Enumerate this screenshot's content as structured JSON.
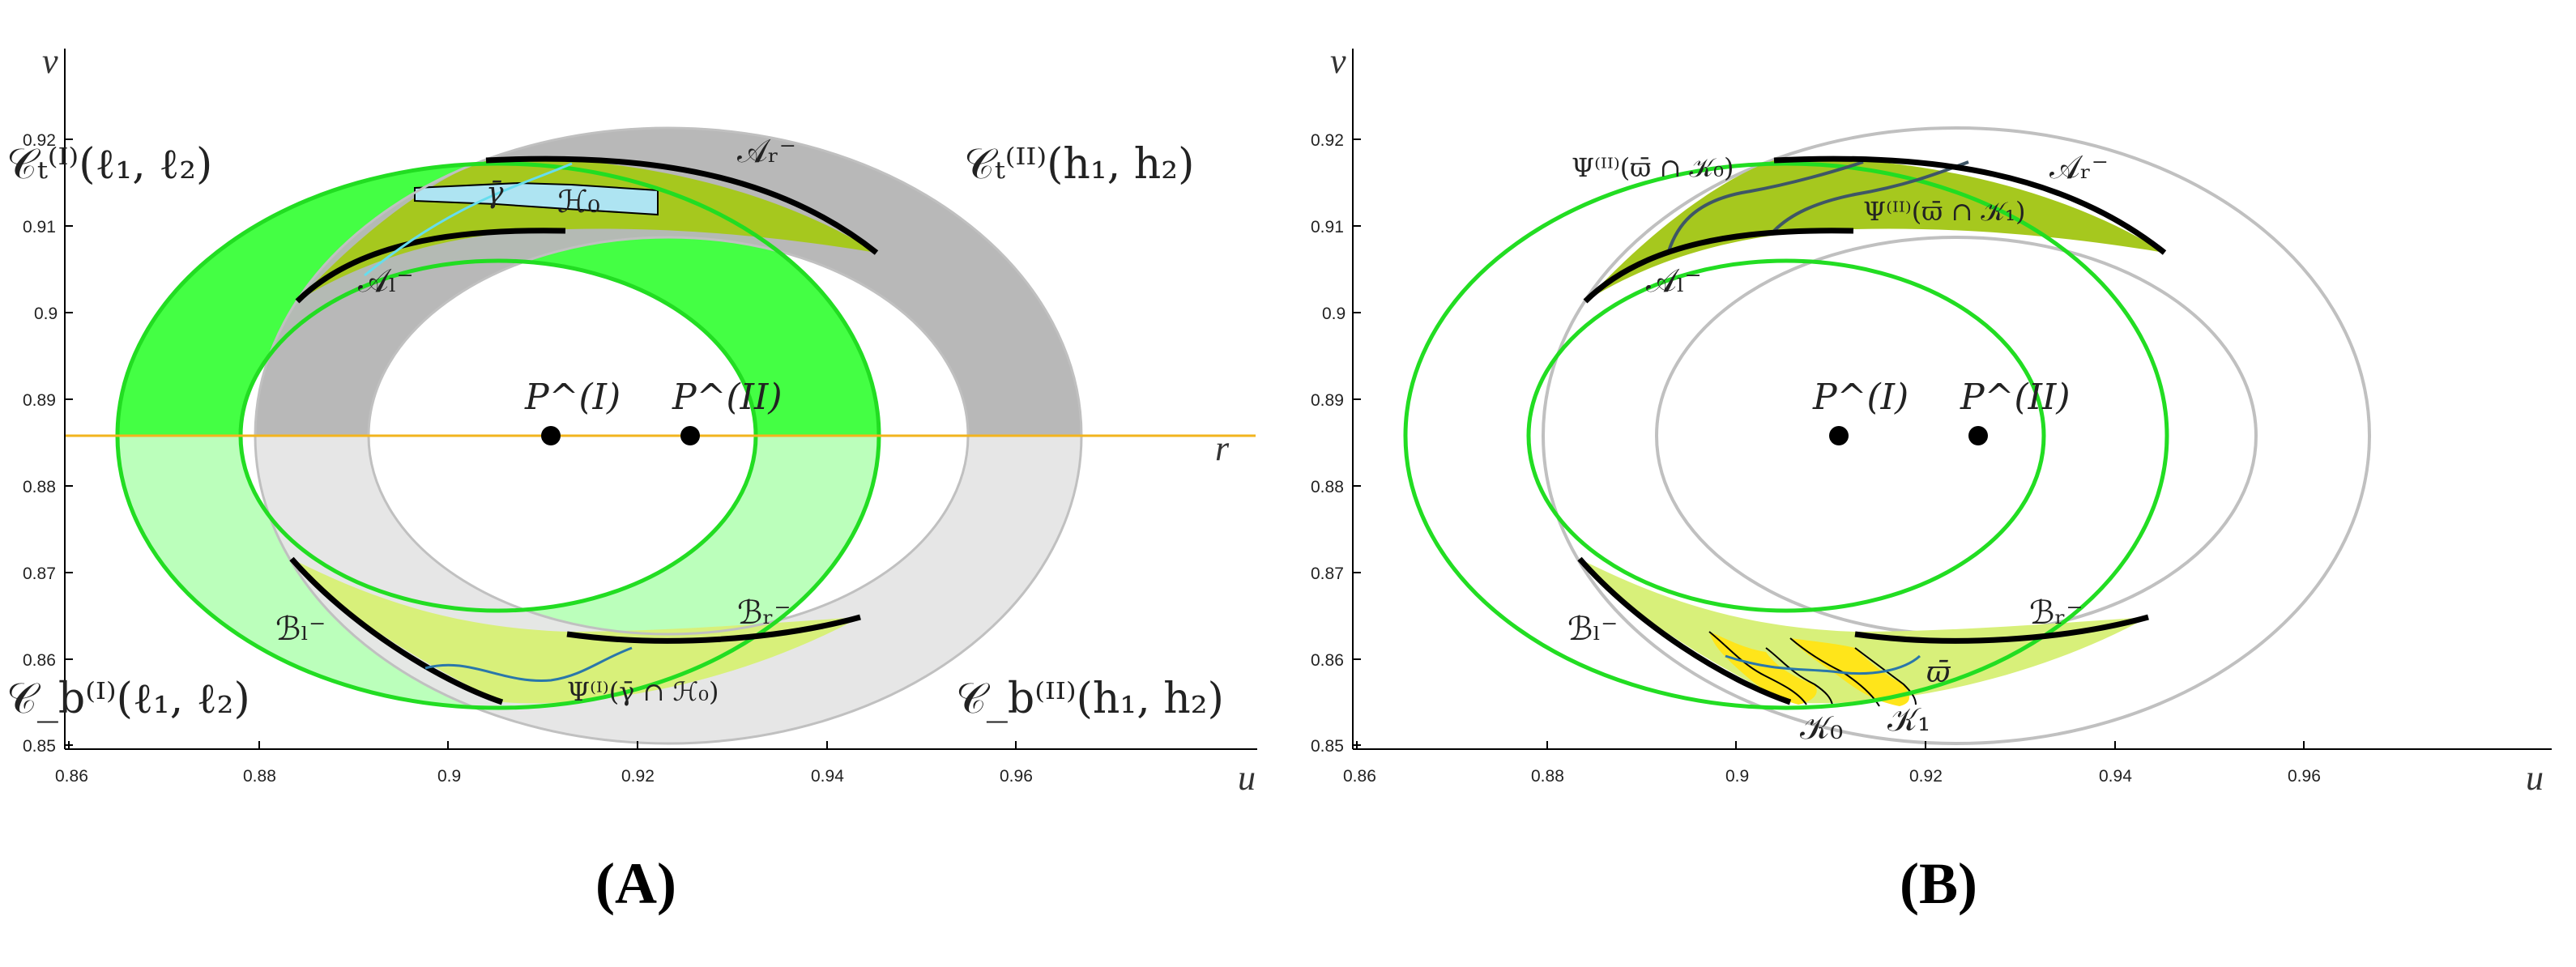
{
  "panels": [
    {
      "id": "A",
      "caption": "(A)",
      "xlabel": "u",
      "ylabel": "v",
      "x_ticks": [
        "0.86",
        "0.88",
        "0.9",
        "0.92",
        "0.94",
        "0.96"
      ],
      "y_ticks": [
        "0.92",
        "0.91",
        "0.9",
        "0.89",
        "0.88",
        "0.87",
        "0.86",
        "0.85"
      ],
      "points": [
        "P^(I)",
        "P^(II)"
      ],
      "line_label": "r",
      "labels": {
        "ct1": "𝒞ₜ⁽ᴵ⁾(ℓ₁, ℓ₂)",
        "cb1": "𝒞_b⁽ᴵ⁾(ℓ₁, ℓ₂)",
        "ct2": "𝒞ₜ⁽ᴵᴵ⁾(h₁, h₂)",
        "cb2": "𝒞_b⁽ᴵᴵ⁾(h₁, h₂)",
        "ar": "𝒜ᵣ⁻",
        "al": "𝒜ₗ⁻",
        "br": "ℬᵣ⁻",
        "bl": "ℬₗ⁻",
        "h0": "ℋ₀",
        "gamma": "γ̄",
        "psi": "Ψ⁽ᴵ⁾(γ̄ ∩ ℋ₀)"
      }
    },
    {
      "id": "B",
      "caption": "(B)",
      "xlabel": "u",
      "ylabel": "v",
      "x_ticks": [
        "0.86",
        "0.88",
        "0.9",
        "0.92",
        "0.94",
        "0.96"
      ],
      "y_ticks": [
        "0.92",
        "0.91",
        "0.9",
        "0.89",
        "0.88",
        "0.87",
        "0.86",
        "0.85"
      ],
      "points": [
        "P^(I)",
        "P^(II)"
      ],
      "labels": {
        "psi0": "Ψ⁽ᴵᴵ⁾(ϖ̄ ∩ 𝒦₀)",
        "psi1": "Ψ⁽ᴵᴵ⁾(ϖ̄ ∩ 𝒦₁)",
        "ar": "𝒜ᵣ⁻",
        "al": "𝒜ₗ⁻",
        "br": "ℬᵣ⁻",
        "bl": "ℬₗ⁻",
        "omega": "ϖ̄",
        "k0": "𝒦₀",
        "k1": "𝒦₁"
      }
    }
  ],
  "colors": {
    "green_dark": "#44ff44",
    "green_light": "#bbffbb",
    "gray_dark": "#b8b8b8",
    "gray_light": "#e6e6e6",
    "olive": "#a6c81e",
    "olive_light": "#d8f07a",
    "aqua": "#aee4f2",
    "yellow": "#ffe51a",
    "boundary_green": "#22dd22",
    "boundary_gray": "#c0c0c0",
    "orange_line": "#f2b41e",
    "black": "#000000"
  }
}
